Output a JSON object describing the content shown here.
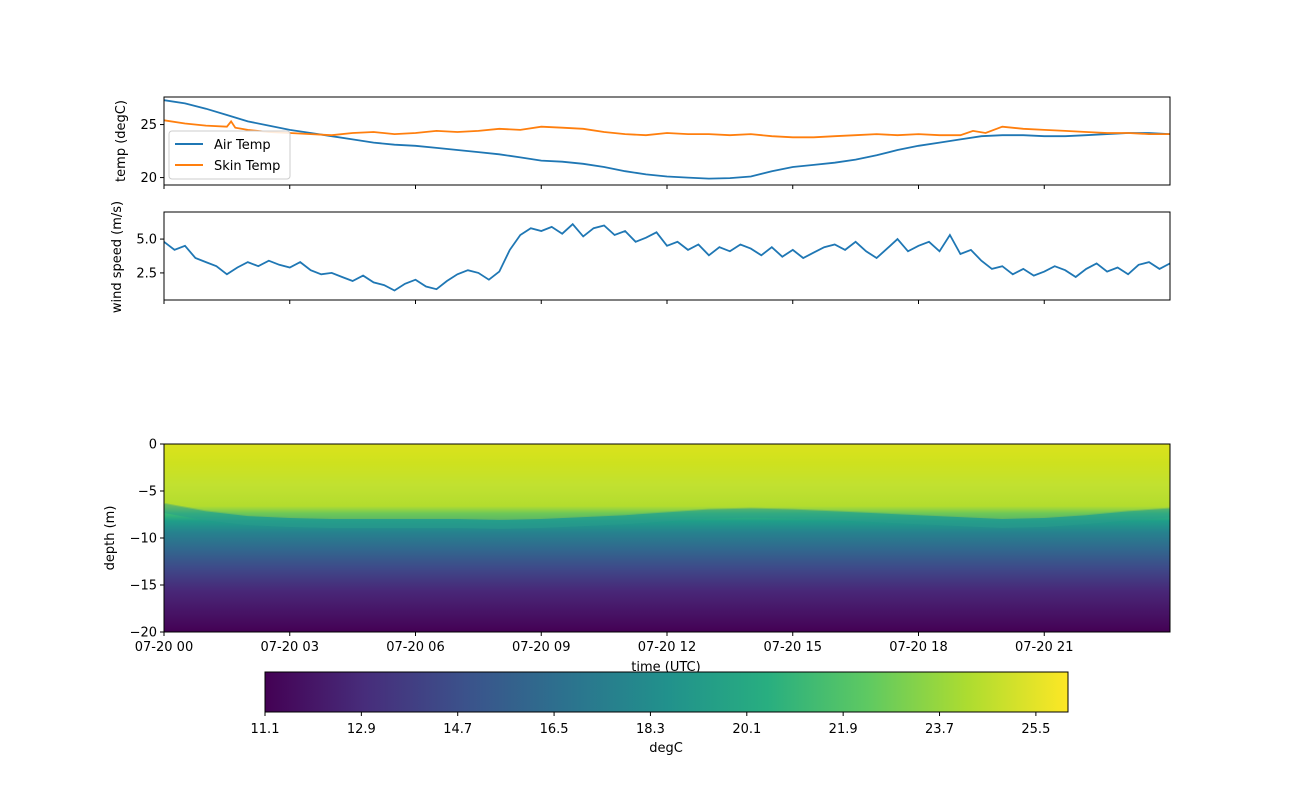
{
  "chart_data": [
    {
      "type": "line",
      "ylabel": "temp (degC)",
      "ylim": [
        19.3,
        27.6
      ],
      "yticks": [
        20,
        25
      ],
      "xlim_hours": [
        0,
        24
      ],
      "legend": "lower-left",
      "series": [
        {
          "name": "Air Temp",
          "color": "#1f77b4",
          "x": [
            0,
            0.5,
            1,
            1.5,
            2,
            2.5,
            3,
            3.5,
            4,
            4.5,
            5,
            5.5,
            6,
            6.5,
            7,
            7.5,
            8,
            8.5,
            9,
            9.5,
            10,
            10.5,
            11,
            11.5,
            12,
            12.5,
            13,
            13.5,
            14,
            14.5,
            15,
            15.5,
            16,
            16.5,
            17,
            17.5,
            18,
            18.5,
            19,
            19.5,
            20,
            20.5,
            21,
            21.5,
            22,
            22.5,
            23,
            23.5,
            24
          ],
          "y": [
            27.3,
            27.0,
            26.5,
            25.9,
            25.3,
            24.9,
            24.5,
            24.2,
            23.9,
            23.6,
            23.3,
            23.1,
            23.0,
            22.8,
            22.6,
            22.4,
            22.2,
            21.9,
            21.6,
            21.5,
            21.3,
            21.0,
            20.6,
            20.3,
            20.1,
            20.0,
            19.9,
            19.95,
            20.1,
            20.6,
            21.0,
            21.2,
            21.4,
            21.7,
            22.1,
            22.6,
            23.0,
            23.3,
            23.6,
            23.9,
            24.0,
            24.0,
            23.9,
            23.9,
            24.0,
            24.1,
            24.2,
            24.2,
            24.1
          ]
        },
        {
          "name": "Skin Temp",
          "color": "#ff7f0e",
          "x": [
            0,
            0.5,
            1,
            1.5,
            1.6,
            1.7,
            2,
            2.5,
            3,
            3.5,
            4,
            4.5,
            5,
            5.5,
            6,
            6.5,
            7,
            7.5,
            8,
            8.5,
            9,
            9.5,
            10,
            10.5,
            11,
            11.5,
            12,
            12.5,
            13,
            13.5,
            14,
            14.5,
            15,
            15.5,
            16,
            16.5,
            17,
            17.5,
            18,
            18.5,
            19,
            19.3,
            19.6,
            20,
            20.5,
            21,
            21.5,
            22,
            22.5,
            23,
            23.5,
            24
          ],
          "y": [
            25.4,
            25.1,
            24.9,
            24.8,
            25.3,
            24.7,
            24.5,
            24.3,
            24.2,
            24.1,
            24.0,
            24.2,
            24.3,
            24.1,
            24.2,
            24.4,
            24.3,
            24.4,
            24.6,
            24.5,
            24.8,
            24.7,
            24.6,
            24.3,
            24.1,
            24.0,
            24.2,
            24.1,
            24.1,
            24.0,
            24.1,
            23.9,
            23.8,
            23.8,
            23.9,
            24.0,
            24.1,
            24.0,
            24.1,
            24.0,
            24.0,
            24.4,
            24.2,
            24.8,
            24.6,
            24.5,
            24.4,
            24.3,
            24.2,
            24.2,
            24.1,
            24.1
          ]
        }
      ],
      "legend_entries": [
        "Air Temp",
        "Skin Temp"
      ]
    },
    {
      "type": "line",
      "ylabel": "wind speed (m/s)",
      "ylim": [
        0.5,
        7.0
      ],
      "yticks": [
        2.5,
        5.0
      ],
      "ytick_labels": [
        "2.5",
        "5.0"
      ],
      "xlim_hours": [
        0,
        24
      ],
      "series": [
        {
          "color": "#1f77b4",
          "x": [
            0,
            0.25,
            0.5,
            0.75,
            1,
            1.25,
            1.5,
            1.75,
            2,
            2.25,
            2.5,
            2.75,
            3,
            3.25,
            3.5,
            3.75,
            4,
            4.25,
            4.5,
            4.75,
            5,
            5.25,
            5.5,
            5.75,
            6,
            6.25,
            6.5,
            6.75,
            7,
            7.25,
            7.5,
            7.75,
            8,
            8.25,
            8.5,
            8.75,
            9,
            9.25,
            9.5,
            9.75,
            10,
            10.25,
            10.5,
            10.75,
            11,
            11.25,
            11.5,
            11.75,
            12,
            12.25,
            12.5,
            12.75,
            13,
            13.25,
            13.5,
            13.75,
            14,
            14.25,
            14.5,
            14.75,
            15,
            15.25,
            15.5,
            15.75,
            16,
            16.25,
            16.5,
            16.75,
            17,
            17.25,
            17.5,
            17.75,
            18,
            18.25,
            18.5,
            18.75,
            19,
            19.25,
            19.5,
            19.75,
            20,
            20.25,
            20.5,
            20.75,
            21,
            21.25,
            21.5,
            21.75,
            22,
            22.25,
            22.5,
            22.75,
            23,
            23.25,
            23.5,
            23.75,
            24
          ],
          "y": [
            4.8,
            4.2,
            4.5,
            3.6,
            3.3,
            3.0,
            2.4,
            2.9,
            3.3,
            3.0,
            3.4,
            3.1,
            2.9,
            3.3,
            2.7,
            2.4,
            2.5,
            2.2,
            1.9,
            2.3,
            1.8,
            1.6,
            1.2,
            1.7,
            2.0,
            1.5,
            1.3,
            1.9,
            2.4,
            2.7,
            2.5,
            2.0,
            2.6,
            4.2,
            5.3,
            5.8,
            5.6,
            5.9,
            5.4,
            6.1,
            5.2,
            5.8,
            6.0,
            5.3,
            5.6,
            4.8,
            5.1,
            5.5,
            4.5,
            4.8,
            4.2,
            4.6,
            3.8,
            4.4,
            4.1,
            4.6,
            4.3,
            3.8,
            4.4,
            3.7,
            4.2,
            3.6,
            4.0,
            4.4,
            4.6,
            4.2,
            4.8,
            4.1,
            3.6,
            4.3,
            5.0,
            4.1,
            4.5,
            4.8,
            4.1,
            5.3,
            3.9,
            4.2,
            3.4,
            2.8,
            3.0,
            2.4,
            2.8,
            2.3,
            2.6,
            3.0,
            2.7,
            2.2,
            2.8,
            3.2,
            2.6,
            2.9,
            2.4,
            3.1,
            3.3,
            2.8,
            3.2
          ]
        }
      ]
    },
    {
      "type": "heatmap",
      "ylabel": "depth (m)",
      "xlabel": "time (UTC)",
      "ylim": [
        -20,
        0
      ],
      "yticks": [
        0,
        -5,
        -10,
        -15,
        -20
      ],
      "xticks": [
        "07-20 00",
        "07-20 03",
        "07-20 06",
        "07-20 09",
        "07-20 12",
        "07-20 15",
        "07-20 18",
        "07-20 21"
      ],
      "thermocline_depth_m": {
        "x": [
          0,
          1,
          2,
          3,
          4,
          5,
          6,
          7,
          8,
          9,
          10,
          11,
          12,
          13,
          14,
          15,
          16,
          17,
          18,
          19,
          20,
          21,
          22,
          23,
          24
        ],
        "y": [
          -6.8,
          -7.6,
          -8.1,
          -8.3,
          -8.4,
          -8.4,
          -8.4,
          -8.4,
          -8.5,
          -8.4,
          -8.2,
          -8.0,
          -7.7,
          -7.4,
          -7.3,
          -7.4,
          -7.6,
          -7.8,
          -8.0,
          -8.2,
          -8.4,
          -8.3,
          -8.0,
          -7.6,
          -7.3
        ]
      },
      "colorbar": {
        "label": "degC",
        "ticks": [
          "11.1",
          "12.9",
          "14.7",
          "16.5",
          "18.3",
          "20.1",
          "21.9",
          "23.7",
          "25.5"
        ],
        "vmin": 11.1,
        "vmax": 26.1,
        "colormap": "viridis"
      }
    }
  ]
}
